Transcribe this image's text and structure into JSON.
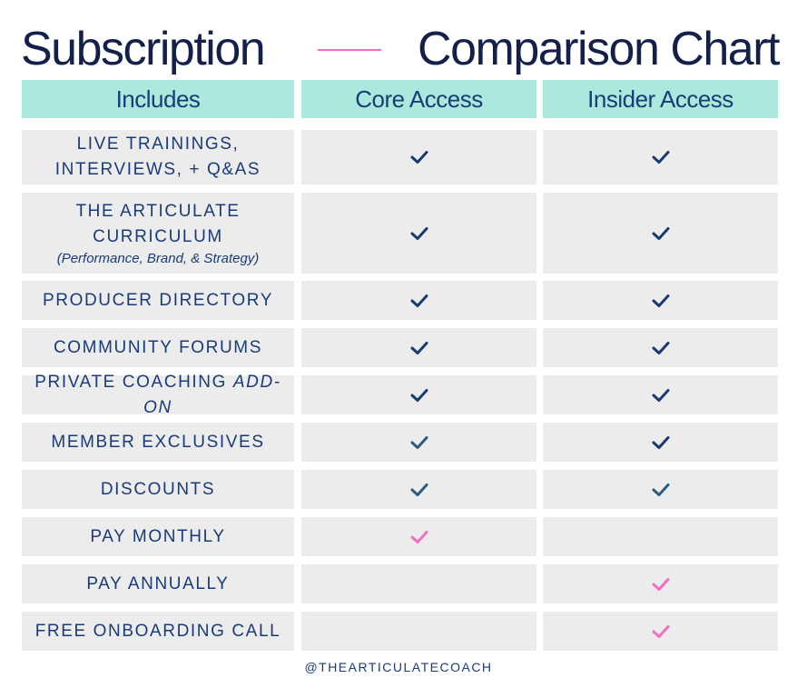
{
  "title": {
    "left": "Subscription",
    "right": "Comparison Chart"
  },
  "columns": [
    "Includes",
    "Core Access",
    "Insider Access"
  ],
  "rows": [
    {
      "feature": "LIVE TRAININGS, INTERVIEWS, + Q&AS",
      "note": "",
      "core": "dark",
      "insider": "dark"
    },
    {
      "feature": "THE ARTICULATE CURRICULUM",
      "note": "(Performance, Brand, & Strategy)",
      "core": "dark",
      "insider": "dark"
    },
    {
      "feature": "PRODUCER DIRECTORY",
      "note": "",
      "core": "dark",
      "insider": "dark"
    },
    {
      "feature": "COMMUNITY FORUMS",
      "note": "",
      "core": "dark",
      "insider": "dark"
    },
    {
      "feature": "PRIVATE COACHING ADD-ON",
      "note": "",
      "core": "dark",
      "insider": "dark"
    },
    {
      "feature": "MEMBER EXCLUSIVES",
      "note": "",
      "core": "slate",
      "insider": "dark"
    },
    {
      "feature": "DISCOUNTS",
      "note": "",
      "core": "slate",
      "insider": "slate"
    },
    {
      "feature": "PAY MONTHLY",
      "note": "",
      "core": "pink",
      "insider": "none"
    },
    {
      "feature": "PAY ANNUALLY",
      "note": "",
      "core": "none",
      "insider": "pink"
    },
    {
      "feature": "FREE ONBOARDING CALL",
      "note": "",
      "core": "none",
      "insider": "pink"
    }
  ],
  "check_colors": {
    "dark": "#173a73",
    "slate": "#2f5a80",
    "pink": "#f06fc0"
  },
  "icons": {
    "check": "check-icon"
  },
  "footer": "@THEARTICULATECOACH"
}
